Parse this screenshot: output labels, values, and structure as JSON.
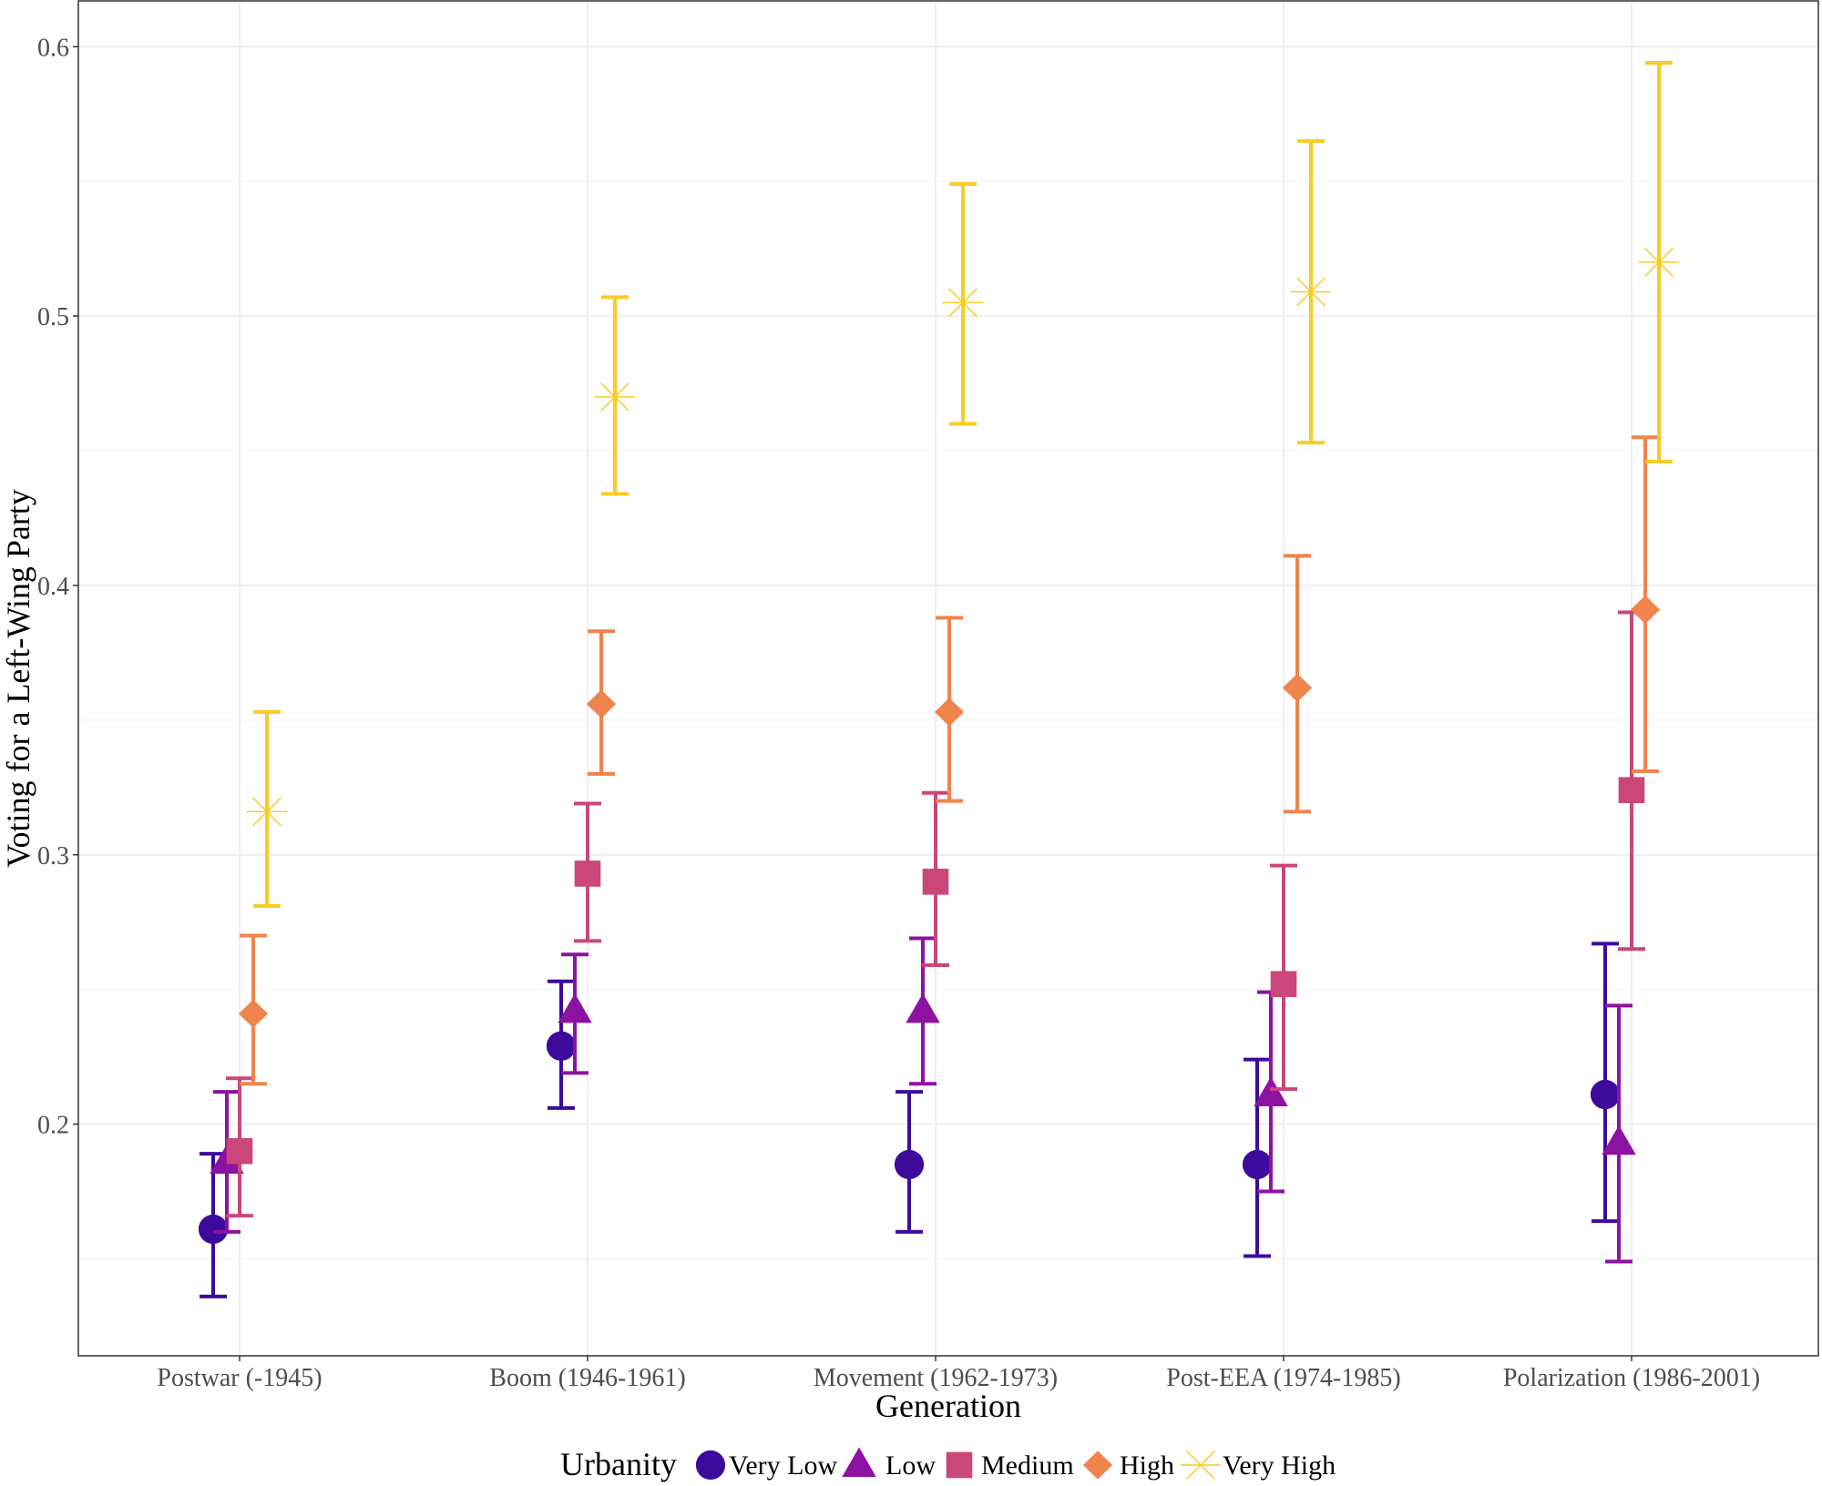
{
  "chart_data": {
    "type": "scatter",
    "subtype": "point-with-errorbars",
    "title": "",
    "xlabel": "Generation",
    "ylabel": "Voting for a Left-Wing Party",
    "ylim": [
      0.114,
      0.617
    ],
    "yticks": [
      0.2,
      0.3,
      0.4,
      0.5,
      0.6
    ],
    "ytick_labels": [
      "0.2",
      "0.3",
      "0.4",
      "0.5",
      "0.6"
    ],
    "grid": true,
    "legend_title": "Urbanity",
    "legend_position": "bottom",
    "categories": [
      "Postwar (-1945)",
      "Boom (1946-1961)",
      "Movement (1962-1973)",
      "Post-EEA (1974-1985)",
      "Polarization (1986-2001)"
    ],
    "series": [
      {
        "name": "Very Low",
        "shape": "circle",
        "color": "#3E0A9C",
        "values": [
          0.161,
          0.229,
          0.185,
          0.185,
          0.211
        ],
        "lower": [
          0.136,
          0.206,
          0.16,
          0.151,
          0.164
        ],
        "upper": [
          0.189,
          0.253,
          0.212,
          0.224,
          0.267
        ]
      },
      {
        "name": "Low",
        "shape": "triangle",
        "color": "#8D12A2",
        "values": [
          0.186,
          0.242,
          0.242,
          0.211,
          0.193
        ],
        "lower": [
          0.16,
          0.219,
          0.215,
          0.175,
          0.149
        ],
        "upper": [
          0.212,
          0.263,
          0.269,
          0.249,
          0.244
        ]
      },
      {
        "name": "Medium",
        "shape": "square",
        "color": "#CB4679",
        "values": [
          0.19,
          0.293,
          0.29,
          0.252,
          0.324
        ],
        "lower": [
          0.166,
          0.268,
          0.259,
          0.213,
          0.265
        ],
        "upper": [
          0.217,
          0.319,
          0.323,
          0.296,
          0.39
        ]
      },
      {
        "name": "High",
        "shape": "diamond",
        "color": "#F0844D",
        "values": [
          0.241,
          0.356,
          0.353,
          0.362,
          0.391
        ],
        "lower": [
          0.215,
          0.33,
          0.32,
          0.316,
          0.331
        ],
        "upper": [
          0.27,
          0.383,
          0.388,
          0.411,
          0.455
        ]
      },
      {
        "name": "Very High",
        "shape": "asterisk",
        "color": "#F9CC25",
        "values": [
          0.316,
          0.47,
          0.505,
          0.509,
          0.52
        ],
        "lower": [
          0.281,
          0.434,
          0.46,
          0.453,
          0.446
        ],
        "upper": [
          0.353,
          0.507,
          0.549,
          0.565,
          0.594
        ]
      }
    ]
  }
}
